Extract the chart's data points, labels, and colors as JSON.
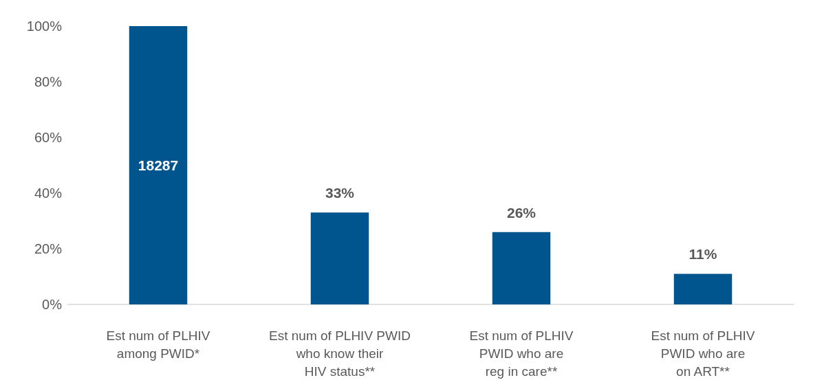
{
  "chart_data": {
    "type": "bar",
    "categories": [
      "Est num of PLHIV\namong PWID*",
      "Est num of PLHIV PWID\nwho know their\nHIV status**",
      "Est num of PLHIV\nPWID who are\nreg in care**",
      "Est num of PLHIV\nPWID who are\non ART**"
    ],
    "values": [
      100,
      33,
      26,
      11
    ],
    "value_labels": [
      null,
      "33%",
      "26%",
      "11%"
    ],
    "annotations": [
      "18287"
    ],
    "color": "#00558f",
    "ylim": [
      0,
      100
    ],
    "yticks": [
      {
        "value": 0,
        "label": "0%"
      },
      {
        "value": 20,
        "label": "20%"
      },
      {
        "value": 40,
        "label": "40%"
      },
      {
        "value": 60,
        "label": "60%"
      },
      {
        "value": 80,
        "label": "80%"
      },
      {
        "value": 100,
        "label": "100%"
      }
    ],
    "grid": false
  }
}
